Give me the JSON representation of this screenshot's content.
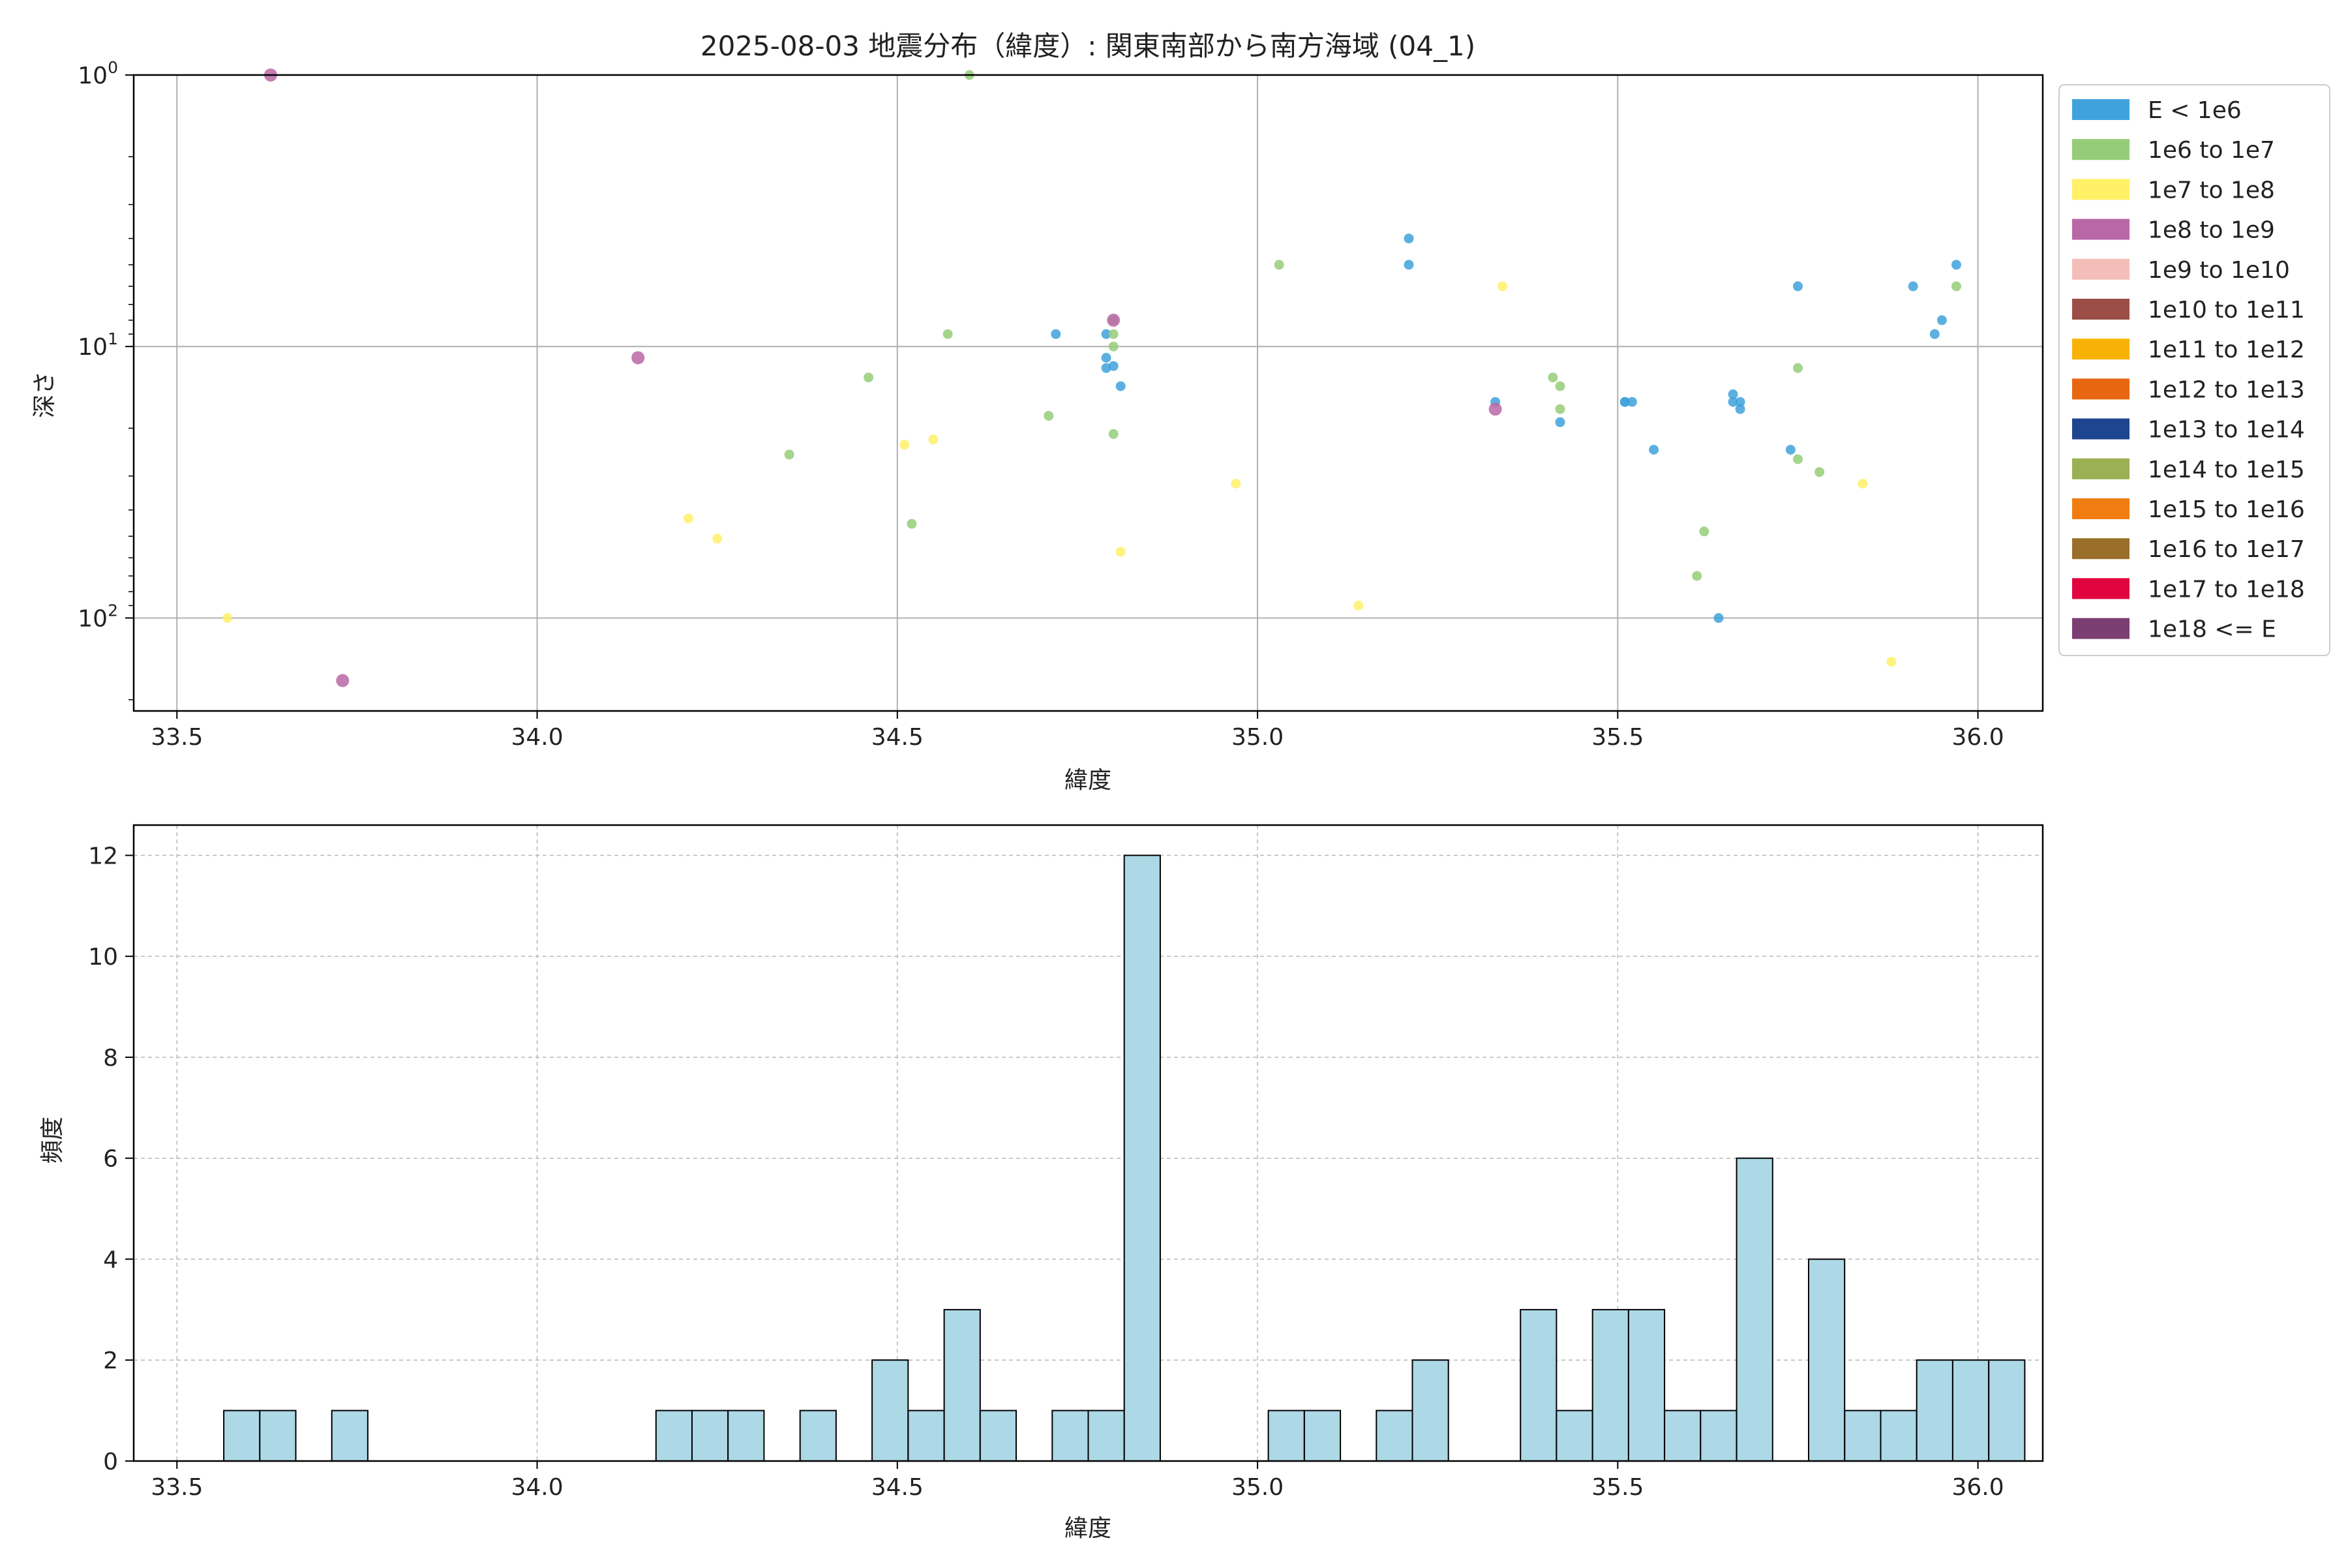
{
  "chart_data": [
    {
      "type": "scatter",
      "title": "2025-08-03 地震分布（緯度）: 関東南部から南方海域 (04_1)",
      "xlabel": "緯度",
      "ylabel": "深さ",
      "xlim": [
        33.44,
        36.09
      ],
      "ylim": [
        1,
        220
      ],
      "y_scale": "log",
      "y_inverted": true,
      "x_ticks": [
        "33.5",
        "34.0",
        "34.5",
        "35.0",
        "35.5",
        "36.0"
      ],
      "x_tick_values": [
        33.5,
        34.0,
        34.5,
        35.0,
        35.5,
        36.0
      ],
      "y_tick_values": [
        1,
        10,
        100
      ],
      "y_tick_labels": [
        {
          "base": "10",
          "exp": "0"
        },
        {
          "base": "10",
          "exp": "1"
        },
        {
          "base": "10",
          "exp": "2"
        }
      ],
      "grid": true,
      "legend_position": "outside-right",
      "legend": [
        {
          "label": "E < 1e6",
          "color": "#3fa2dc"
        },
        {
          "label": "1e6 to 1e7",
          "color": "#95cc78"
        },
        {
          "label": "1e7 to 1e8",
          "color": "#fff068"
        },
        {
          "label": "1e8 to 1e9",
          "color": "#b967a6"
        },
        {
          "label": "1e9 to 1e10",
          "color": "#f4beb8"
        },
        {
          "label": "1e10 to 1e11",
          "color": "#9a4e46"
        },
        {
          "label": "1e11 to 1e12",
          "color": "#f8b205"
        },
        {
          "label": "1e12 to 1e13",
          "color": "#e8660f"
        },
        {
          "label": "1e13 to 1e14",
          "color": "#1e4590"
        },
        {
          "label": "1e14 to 1e15",
          "color": "#9bb052"
        },
        {
          "label": "1e15 to 1e16",
          "color": "#f07c12"
        },
        {
          "label": "1e16 to 1e17",
          "color": "#9a6f2a"
        },
        {
          "label": "1e17 to 1e18",
          "color": "#e0053f"
        },
        {
          "label": "1e18 <= E",
          "color": "#7a3e72"
        }
      ],
      "series": [
        {
          "color": "#3fa2dc",
          "points": [
            [
              34.72,
              9.0
            ],
            [
              34.79,
              9.0
            ],
            [
              34.8,
              11.8
            ],
            [
              34.79,
              11.0
            ],
            [
              34.79,
              12.0
            ],
            [
              34.81,
              14.0
            ],
            [
              35.21,
              4.0
            ],
            [
              35.21,
              5.0
            ],
            [
              35.33,
              16.0
            ],
            [
              35.42,
              19.0
            ],
            [
              35.51,
              16.0
            ],
            [
              35.51,
              16.0
            ],
            [
              35.52,
              16.0
            ],
            [
              35.55,
              24.0
            ],
            [
              35.64,
              100.0
            ],
            [
              35.66,
              15.0
            ],
            [
              35.66,
              16.0
            ],
            [
              35.67,
              16.0
            ],
            [
              35.67,
              17.0
            ],
            [
              35.74,
              24.0
            ],
            [
              35.75,
              6.0
            ],
            [
              35.91,
              6.0
            ],
            [
              35.94,
              9.0
            ],
            [
              35.95,
              8.0
            ],
            [
              35.97,
              5.0
            ]
          ]
        },
        {
          "color": "#95cc78",
          "points": [
            [
              34.35,
              25.0
            ],
            [
              34.46,
              13.0
            ],
            [
              34.52,
              45.0
            ],
            [
              34.57,
              9.0
            ],
            [
              34.6,
              1.0
            ],
            [
              34.71,
              18.0
            ],
            [
              34.8,
              8.0
            ],
            [
              34.8,
              9.0
            ],
            [
              34.8,
              10.0
            ],
            [
              34.8,
              21.0
            ],
            [
              35.03,
              5.0
            ],
            [
              35.41,
              13.0
            ],
            [
              35.42,
              14.0
            ],
            [
              35.42,
              17.0
            ],
            [
              35.61,
              70.0
            ],
            [
              35.62,
              48.0
            ],
            [
              35.75,
              26.0
            ],
            [
              35.75,
              12.0
            ],
            [
              35.78,
              29.0
            ],
            [
              35.97,
              6.0
            ]
          ]
        },
        {
          "color": "#fff068",
          "points": [
            [
              33.57,
              100.0
            ],
            [
              34.21,
              43.0
            ],
            [
              34.25,
              51.0
            ],
            [
              34.51,
              23.0
            ],
            [
              34.55,
              22.0
            ],
            [
              34.81,
              57.0
            ],
            [
              34.97,
              32.0
            ],
            [
              35.14,
              90.0
            ],
            [
              35.34,
              6.0
            ],
            [
              35.84,
              32.0
            ],
            [
              35.88,
              145.0
            ]
          ]
        },
        {
          "color": "#b967a6",
          "points": [
            [
              33.63,
              1.0
            ],
            [
              33.73,
              170.0
            ],
            [
              34.14,
              11.0
            ],
            [
              34.8,
              8.0
            ],
            [
              35.33,
              17.0
            ]
          ]
        }
      ]
    },
    {
      "type": "bar",
      "title": "",
      "xlabel": "緯度",
      "ylabel": "頻度",
      "xlim": [
        33.44,
        36.09
      ],
      "ylim": [
        0,
        12.6
      ],
      "x_ticks": [
        "33.5",
        "34.0",
        "34.5",
        "35.0",
        "35.5",
        "36.0"
      ],
      "x_tick_values": [
        33.5,
        34.0,
        34.5,
        35.0,
        35.5,
        36.0
      ],
      "y_ticks": [
        "0",
        "2",
        "4",
        "6",
        "8",
        "10",
        "12"
      ],
      "y_tick_values": [
        0,
        2,
        4,
        6,
        8,
        10,
        12
      ],
      "grid": true,
      "bar_color": "#add8e6",
      "bin_start": 33.565,
      "bin_width": 0.05,
      "values": [
        1,
        1,
        0,
        1,
        0,
        0,
        0,
        0,
        0,
        0,
        0,
        0,
        1,
        1,
        1,
        0,
        1,
        0,
        2,
        1,
        3,
        1,
        0,
        1,
        1,
        12,
        0,
        0,
        0,
        1,
        1,
        0,
        1,
        2,
        0,
        0,
        3,
        1,
        3,
        3,
        1,
        1,
        6,
        0,
        4,
        1,
        1,
        2,
        2,
        2
      ]
    }
  ]
}
